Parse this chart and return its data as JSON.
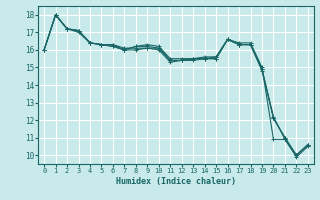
{
  "xlabel": "Humidex (Indice chaleur)",
  "xlim": [
    -0.5,
    23.5
  ],
  "ylim": [
    9.5,
    18.5
  ],
  "yticks": [
    10,
    11,
    12,
    13,
    14,
    15,
    16,
    17,
    18
  ],
  "xticks": [
    0,
    1,
    2,
    3,
    4,
    5,
    6,
    7,
    8,
    9,
    10,
    11,
    12,
    13,
    14,
    15,
    16,
    17,
    18,
    19,
    20,
    21,
    22,
    23
  ],
  "background_color": "#c8eaea",
  "line_color": "#1a6666",
  "grid_color": "#ffffff",
  "lines": [
    [
      16.0,
      18.0,
      17.2,
      17.1,
      16.4,
      16.3,
      16.2,
      16.0,
      16.0,
      16.1,
      16.0,
      15.3,
      15.4,
      15.4,
      15.5,
      15.5,
      16.6,
      16.3,
      16.3,
      14.8,
      12.2,
      10.9,
      10.0,
      10.6
    ],
    [
      16.0,
      18.0,
      17.2,
      17.1,
      16.4,
      16.3,
      16.2,
      16.0,
      16.2,
      16.3,
      16.2,
      15.5,
      15.5,
      15.5,
      15.6,
      15.6,
      16.6,
      16.4,
      16.4,
      15.0,
      10.9,
      10.9,
      9.9,
      10.5
    ],
    [
      16.0,
      18.0,
      17.2,
      17.0,
      16.4,
      16.3,
      16.3,
      16.1,
      16.1,
      16.1,
      16.1,
      15.4,
      15.4,
      15.5,
      15.5,
      15.5,
      16.6,
      16.3,
      16.3,
      14.9,
      12.1,
      11.0,
      10.0,
      10.6
    ],
    [
      16.0,
      18.0,
      17.2,
      17.1,
      16.4,
      16.3,
      16.3,
      16.0,
      16.2,
      16.2,
      16.1,
      15.4,
      15.4,
      15.5,
      15.5,
      15.6,
      16.6,
      16.3,
      16.3,
      14.9,
      12.1,
      11.0,
      10.0,
      10.6
    ]
  ]
}
